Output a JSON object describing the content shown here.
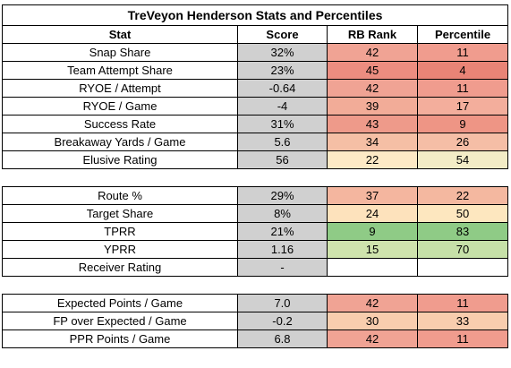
{
  "title": "TreVeyon Henderson Stats and Percentiles",
  "headers": {
    "stat": "Stat",
    "score": "Score",
    "rank": "RB Rank",
    "percentile": "Percentile"
  },
  "sections": [
    {
      "rows": [
        {
          "stat": "Snap Share",
          "score": "32%",
          "rank": "42",
          "percentile": "11",
          "rank_color": "#f0a394",
          "pct_color": "#f09c8e"
        },
        {
          "stat": "Team Attempt Share",
          "score": "23%",
          "rank": "45",
          "percentile": "4",
          "rank_color": "#ec8d80",
          "pct_color": "#e98476"
        },
        {
          "stat": "RYOE / Attempt",
          "score": "-0.64",
          "rank": "42",
          "percentile": "11",
          "rank_color": "#f0a394",
          "pct_color": "#f09c8e"
        },
        {
          "stat": "RYOE / Game",
          "score": "-4",
          "rank": "39",
          "percentile": "17",
          "rank_color": "#f2ac98",
          "pct_color": "#f3ae9c"
        },
        {
          "stat": "Success Rate",
          "score": "31%",
          "rank": "43",
          "percentile": "9",
          "rank_color": "#ee9a8a",
          "pct_color": "#ee9585"
        },
        {
          "stat": "Breakaway Yards / Game",
          "score": "5.6",
          "rank": "34",
          "percentile": "26",
          "rank_color": "#f5bfa5",
          "pct_color": "#f5bea6"
        },
        {
          "stat": "Elusive Rating",
          "score": "56",
          "rank": "22",
          "percentile": "54",
          "rank_color": "#fde9c5",
          "pct_color": "#f3ecc6"
        }
      ]
    },
    {
      "rows": [
        {
          "stat": "Route %",
          "score": "29%",
          "rank": "37",
          "percentile": "22",
          "rank_color": "#f4b69f",
          "pct_color": "#f4b8a0"
        },
        {
          "stat": "Target Share",
          "score": "8%",
          "rank": "24",
          "percentile": "50",
          "rank_color": "#fde2bc",
          "pct_color": "#fde7bf"
        },
        {
          "stat": "TPRR",
          "score": "21%",
          "rank": "9",
          "percentile": "83",
          "rank_color": "#8fcb86",
          "pct_color": "#8fcb86"
        },
        {
          "stat": "YPRR",
          "score": "1.16",
          "rank": "15",
          "percentile": "70",
          "rank_color": "#cfe3ad",
          "pct_color": "#c6e0a8"
        },
        {
          "stat": "Receiver Rating",
          "score": "-",
          "rank": "",
          "percentile": "",
          "rank_color": "#ffffff",
          "pct_color": "#ffffff"
        }
      ]
    },
    {
      "rows": [
        {
          "stat": "Expected Points / Game",
          "score": "7.0",
          "rank": "42",
          "percentile": "11",
          "rank_color": "#f0a394",
          "pct_color": "#f09c8e"
        },
        {
          "stat": "FP over Expected / Game",
          "score": "-0.2",
          "rank": "30",
          "percentile": "33",
          "rank_color": "#f8cdae",
          "pct_color": "#f8cdae"
        },
        {
          "stat": "PPR Points / Game",
          "score": "6.8",
          "rank": "42",
          "percentile": "11",
          "rank_color": "#f0a394",
          "pct_color": "#f09c8e"
        }
      ]
    }
  ]
}
